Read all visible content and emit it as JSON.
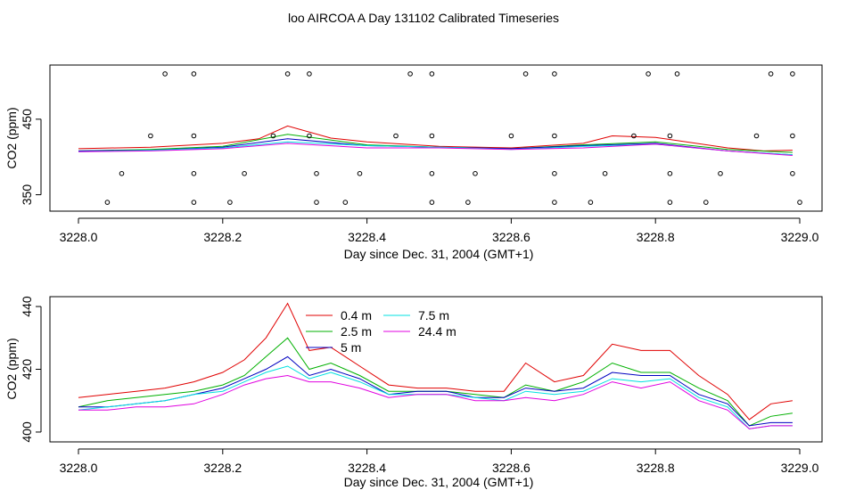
{
  "title": "loo AIRCOA A  Day 131102  Calibrated Timeseries",
  "colors": {
    "0.4 m": "#e00000",
    "2.5 m": "#00b000",
    "5 m": "#0000c0",
    "7.5 m": "#00e0e0",
    "24.4 m": "#e000e0",
    "calibration_points": "#000000"
  },
  "chart_data": [
    {
      "type": "line",
      "panel": "top",
      "xlabel": "Day since Dec. 31, 2004 (GMT+1)",
      "ylabel": "CO2 (ppm)",
      "xlim": [
        3228.0,
        3229.0
      ],
      "ylim": [
        333,
        517
      ],
      "x_ticks": [
        "3228.0",
        "3228.2",
        "3228.4",
        "3228.6",
        "3228.8",
        "3229.0"
      ],
      "y_ticks": [
        "350",
        "450"
      ],
      "series": [
        {
          "name": "0.4 m",
          "x": [
            3228.0,
            3228.1,
            3228.2,
            3228.25,
            3228.29,
            3228.35,
            3228.4,
            3228.5,
            3228.6,
            3228.7,
            3228.74,
            3228.8,
            3228.9,
            3228.95,
            3228.99
          ],
          "values": [
            411,
            413,
            418,
            424,
            441,
            425,
            420,
            414,
            412,
            418,
            428,
            426,
            412,
            408,
            409
          ]
        },
        {
          "name": "2.5 m",
          "x": [
            3228.0,
            3228.1,
            3228.2,
            3228.29,
            3228.4,
            3228.5,
            3228.6,
            3228.7,
            3228.8,
            3228.9,
            3228.99
          ],
          "values": [
            408,
            410,
            414,
            430,
            416,
            413,
            411,
            416,
            420,
            410,
            406
          ]
        },
        {
          "name": "5 m",
          "x": [
            3228.0,
            3228.1,
            3228.2,
            3228.29,
            3228.4,
            3228.5,
            3228.6,
            3228.7,
            3228.8,
            3228.9,
            3228.99
          ],
          "values": [
            408,
            409,
            413,
            424,
            415,
            413,
            411,
            415,
            418,
            408,
            403
          ]
        },
        {
          "name": "7.5 m",
          "x": [
            3228.0,
            3228.1,
            3228.2,
            3228.29,
            3228.4,
            3228.5,
            3228.6,
            3228.7,
            3228.8,
            3228.9,
            3228.99
          ],
          "values": [
            407,
            409,
            412,
            420,
            415,
            413,
            410,
            414,
            417,
            408,
            403
          ]
        },
        {
          "name": "24.4 m",
          "x": [
            3228.0,
            3228.1,
            3228.2,
            3228.29,
            3228.4,
            3228.5,
            3228.6,
            3228.7,
            3228.8,
            3228.9,
            3228.99
          ],
          "values": [
            407,
            408,
            411,
            418,
            412,
            412,
            410,
            412,
            417,
            408,
            402
          ]
        }
      ],
      "calibration_points": {
        "x": [
          3228.12,
          3228.16,
          3228.29,
          3228.32,
          3228.46,
          3228.49,
          3228.62,
          3228.66,
          3228.79,
          3228.83,
          3228.96,
          3228.99,
          3228.1,
          3228.16,
          3228.27,
          3228.32,
          3228.44,
          3228.49,
          3228.6,
          3228.66,
          3228.77,
          3228.82,
          3228.94,
          3228.99,
          3228.06,
          3228.16,
          3228.23,
          3228.33,
          3228.39,
          3228.49,
          3228.55,
          3228.66,
          3228.73,
          3228.82,
          3228.89,
          3228.99,
          3228.04,
          3228.16,
          3228.21,
          3228.33,
          3228.37,
          3228.49,
          3228.54,
          3228.66,
          3228.71,
          3228.82,
          3228.87,
          3229.0
        ],
        "values": [
          510,
          510,
          510,
          510,
          510,
          510,
          510,
          510,
          510,
          510,
          510,
          510,
          428,
          428,
          428,
          428,
          428,
          428,
          428,
          428,
          428,
          428,
          428,
          428,
          378,
          378,
          378,
          378,
          378,
          378,
          378,
          378,
          378,
          378,
          378,
          378,
          340,
          340,
          340,
          340,
          340,
          340,
          340,
          340,
          340,
          340,
          340,
          340
        ]
      }
    },
    {
      "type": "line",
      "panel": "bottom",
      "xlabel": "Day since Dec. 31, 2004 (GMT+1)",
      "ylabel": "CO2 (ppm)",
      "xlim": [
        3228.0,
        3229.0
      ],
      "ylim": [
        398,
        442
      ],
      "x_ticks": [
        "3228.0",
        "3228.2",
        "3228.4",
        "3228.6",
        "3228.8",
        "3229.0"
      ],
      "y_ticks": [
        "400",
        "420",
        "440"
      ],
      "legend": "top-left",
      "series": [
        {
          "name": "0.4 m",
          "x": [
            3228.0,
            3228.04,
            3228.08,
            3228.12,
            3228.16,
            3228.2,
            3228.23,
            3228.26,
            3228.29,
            3228.32,
            3228.35,
            3228.39,
            3228.43,
            3228.47,
            3228.51,
            3228.55,
            3228.59,
            3228.62,
            3228.66,
            3228.7,
            3228.74,
            3228.78,
            3228.82,
            3228.86,
            3228.9,
            3228.93,
            3228.96,
            3228.99
          ],
          "values": [
            411,
            412,
            413,
            414,
            416,
            419,
            423,
            430,
            441,
            426,
            427,
            421,
            415,
            414,
            414,
            413,
            413,
            422,
            416,
            418,
            428,
            426,
            426,
            418,
            412,
            404,
            409,
            410
          ]
        },
        {
          "name": "2.5 m",
          "x": [
            3228.0,
            3228.04,
            3228.08,
            3228.12,
            3228.16,
            3228.2,
            3228.23,
            3228.26,
            3228.29,
            3228.32,
            3228.35,
            3228.39,
            3228.43,
            3228.47,
            3228.51,
            3228.55,
            3228.59,
            3228.62,
            3228.66,
            3228.7,
            3228.74,
            3228.78,
            3228.82,
            3228.86,
            3228.9,
            3228.93,
            3228.96,
            3228.99
          ],
          "values": [
            408,
            410,
            411,
            412,
            413,
            415,
            418,
            424,
            430,
            420,
            422,
            418,
            413,
            413,
            413,
            412,
            411,
            415,
            413,
            416,
            422,
            419,
            419,
            414,
            410,
            402,
            405,
            406
          ]
        },
        {
          "name": "5 m",
          "x": [
            3228.0,
            3228.04,
            3228.08,
            3228.12,
            3228.16,
            3228.2,
            3228.23,
            3228.26,
            3228.29,
            3228.32,
            3228.35,
            3228.39,
            3228.43,
            3228.47,
            3228.51,
            3228.55,
            3228.59,
            3228.62,
            3228.66,
            3228.7,
            3228.74,
            3228.78,
            3228.82,
            3228.86,
            3228.9,
            3228.93,
            3228.96,
            3228.99
          ],
          "values": [
            408,
            408,
            409,
            410,
            412,
            414,
            417,
            420,
            424,
            418,
            420,
            417,
            412,
            413,
            413,
            411,
            411,
            414,
            413,
            414,
            419,
            418,
            418,
            412,
            409,
            402,
            403,
            403
          ]
        },
        {
          "name": "7.5 m",
          "x": [
            3228.0,
            3228.04,
            3228.08,
            3228.12,
            3228.16,
            3228.2,
            3228.23,
            3228.26,
            3228.29,
            3228.32,
            3228.35,
            3228.39,
            3228.43,
            3228.47,
            3228.51,
            3228.55,
            3228.59,
            3228.62,
            3228.66,
            3228.7,
            3228.74,
            3228.78,
            3228.82,
            3228.86,
            3228.9,
            3228.93,
            3228.96,
            3228.99
          ],
          "values": [
            407,
            408,
            409,
            410,
            412,
            413,
            416,
            419,
            421,
            417,
            419,
            416,
            412,
            412,
            412,
            411,
            410,
            413,
            412,
            413,
            417,
            416,
            417,
            411,
            408,
            401,
            402,
            402
          ]
        },
        {
          "name": "24.4 m",
          "x": [
            3228.0,
            3228.04,
            3228.08,
            3228.12,
            3228.16,
            3228.2,
            3228.23,
            3228.26,
            3228.29,
            3228.32,
            3228.35,
            3228.39,
            3228.43,
            3228.47,
            3228.51,
            3228.55,
            3228.59,
            3228.62,
            3228.66,
            3228.7,
            3228.74,
            3228.78,
            3228.82,
            3228.86,
            3228.9,
            3228.93,
            3228.96,
            3228.99
          ],
          "values": [
            407,
            407,
            408,
            408,
            409,
            412,
            415,
            417,
            418,
            416,
            416,
            414,
            411,
            412,
            412,
            410,
            410,
            411,
            410,
            412,
            416,
            414,
            416,
            410,
            407,
            401,
            402,
            402
          ]
        }
      ]
    }
  ]
}
